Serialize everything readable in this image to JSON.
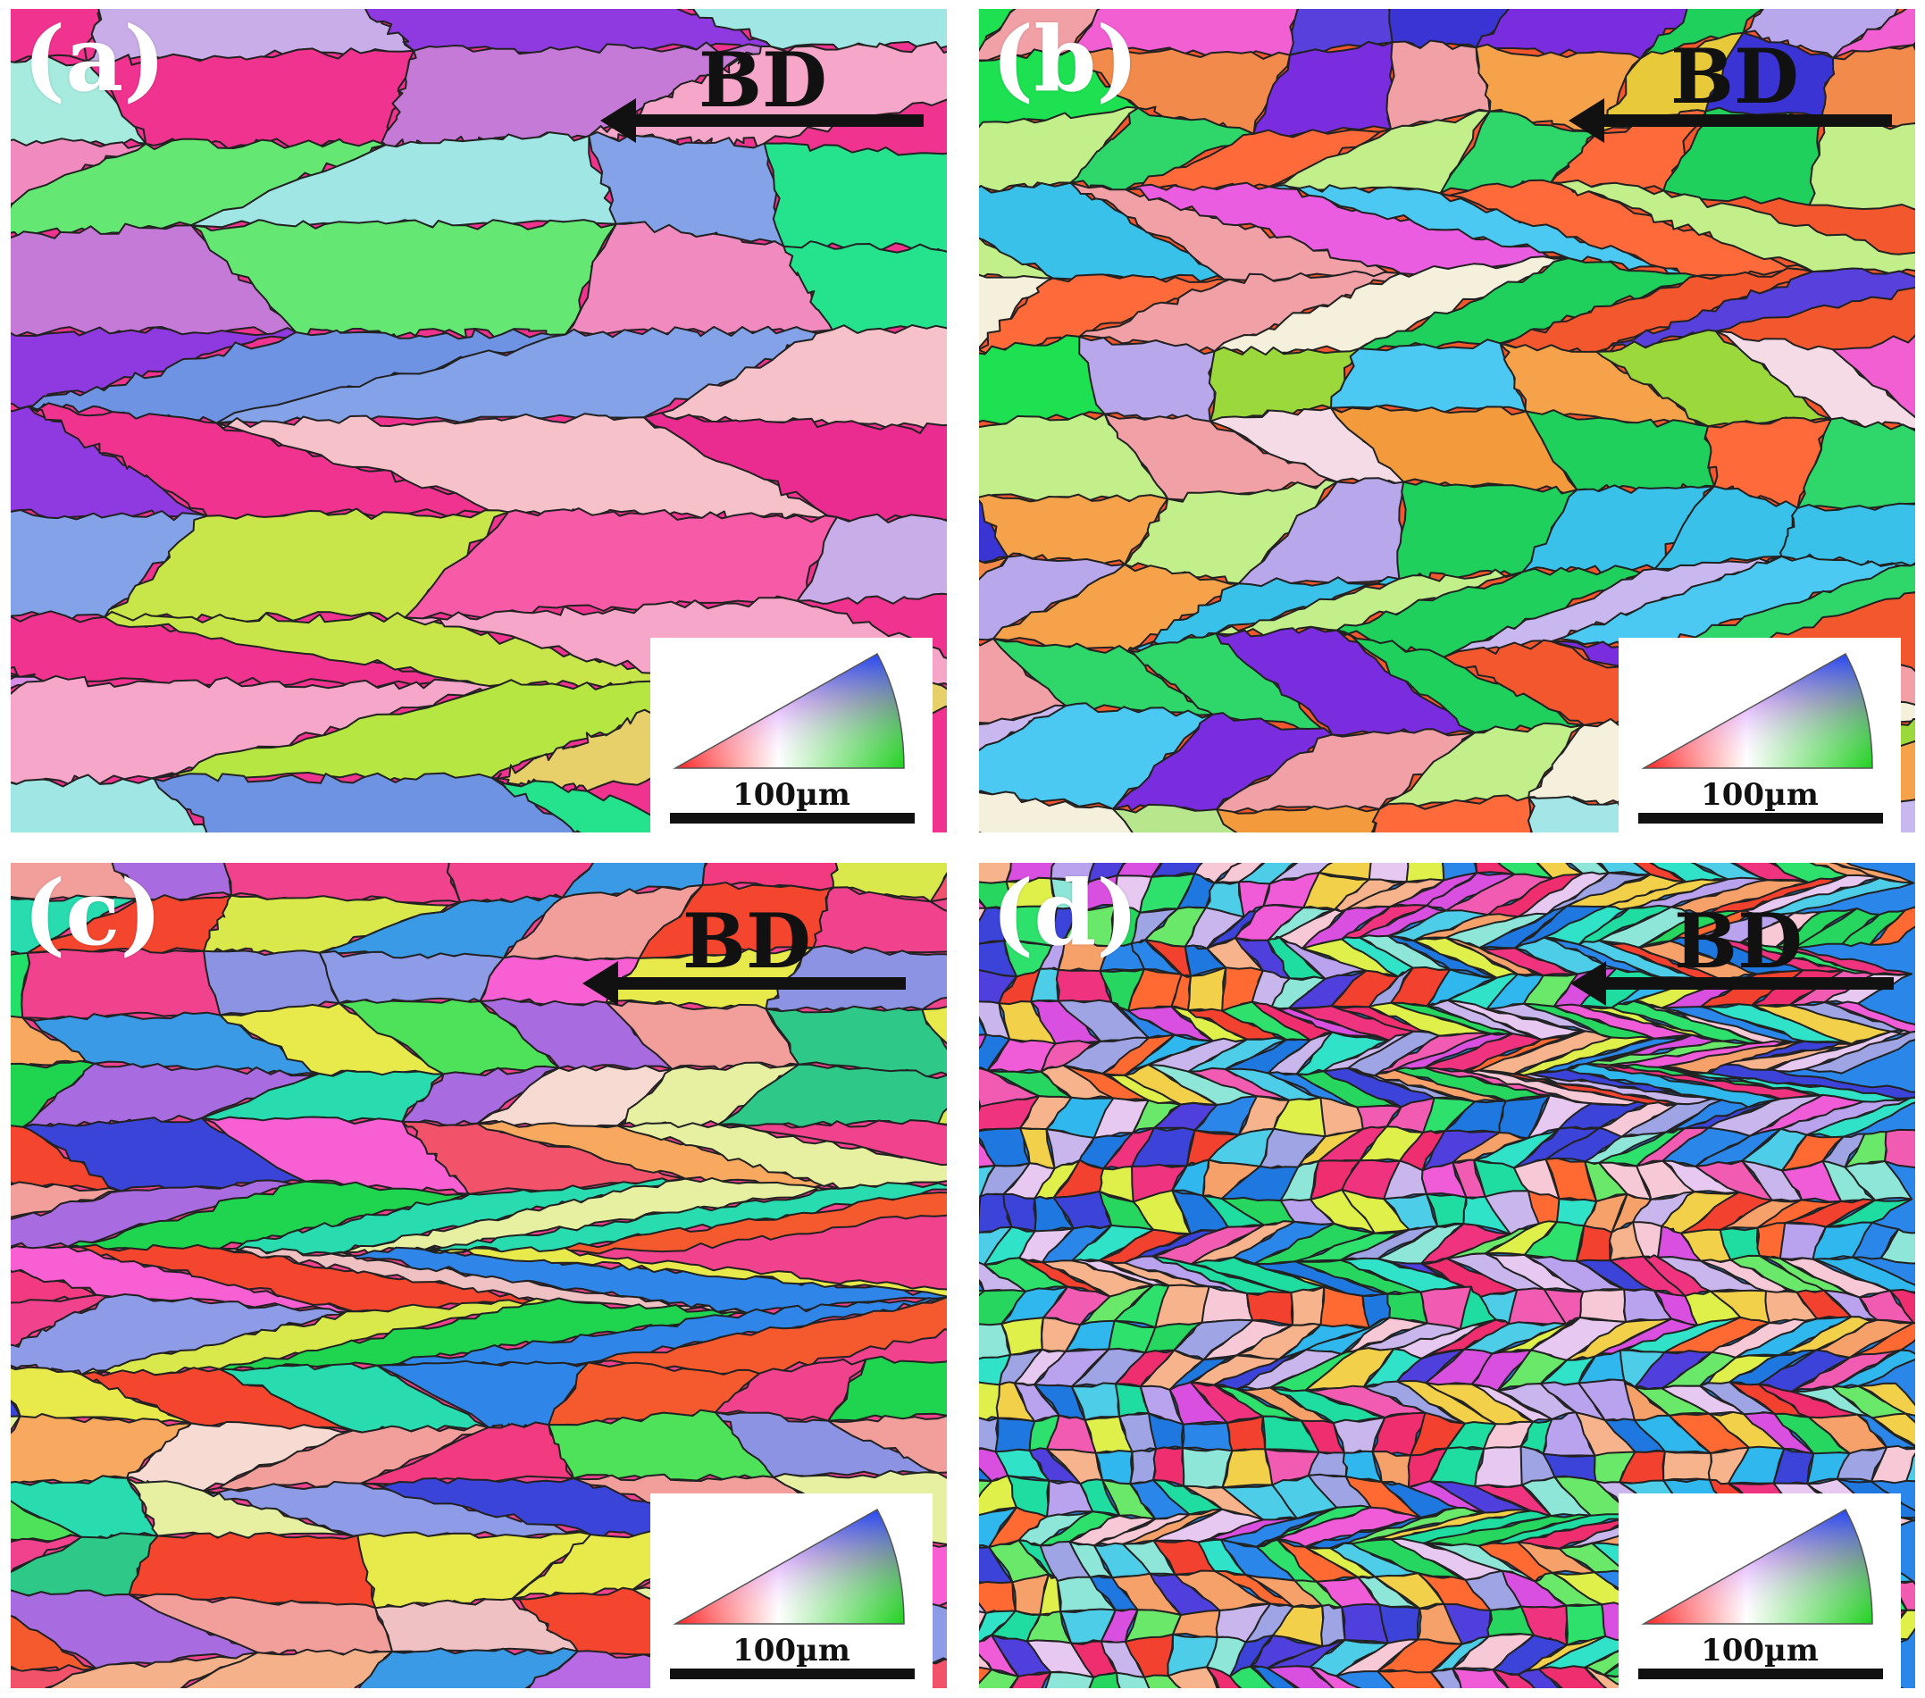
{
  "panels": [
    {
      "id": "a",
      "label": "(a)",
      "direction_label": "BD",
      "scale_label": "100µm",
      "palette": [
        "#f0338f",
        "#ea2b90",
        "#f75aa6",
        "#6f93e3",
        "#84a2e8",
        "#b6e641",
        "#c8e64a",
        "#25e28d",
        "#1fe58a",
        "#f08abf",
        "#f6a6c8",
        "#e7d06a",
        "#a7eade",
        "#9fe6e4",
        "#d88ce6",
        "#c67ad8",
        "#ce6ee0",
        "#c8ade8",
        "#8f3ae0",
        "#65e873",
        "#f7c1c9",
        "#f19bb8"
      ]
    },
    {
      "id": "b",
      "label": "(b)",
      "direction_label": "BD",
      "scale_label": "100µm",
      "palette": [
        "#f3572d",
        "#ff6a3a",
        "#f39a3c",
        "#f6a24b",
        "#f18a4a",
        "#7a2cdf",
        "#3b34d4",
        "#5740dc",
        "#2fd66a",
        "#1fd05d",
        "#1ee152",
        "#9bd83c",
        "#9fdc3c",
        "#b8e68c",
        "#c3ef8a",
        "#a4e6e8",
        "#39c1ea",
        "#4cc9f2",
        "#f15fd3",
        "#ea5ce0",
        "#c9b7ef",
        "#b9a7ec",
        "#e8c93a",
        "#f4f0dc",
        "#f1a1a6",
        "#f5dbe6"
      ]
    },
    {
      "id": "c",
      "label": "(c)",
      "direction_label": "BD",
      "scale_label": "100µm",
      "palette": [
        "#f0428d",
        "#f13a7f",
        "#f2526a",
        "#f4462e",
        "#f55a2f",
        "#ff6a2f",
        "#e7ea4a",
        "#d9e84a",
        "#f9a85f",
        "#f5b28a",
        "#f29f9c",
        "#b86ae5",
        "#a96be0",
        "#8e9be6",
        "#8c93e2",
        "#3b44d8",
        "#2f86e8",
        "#3a9ae6",
        "#2ec989",
        "#28dcb0",
        "#22e06a",
        "#4ee25a",
        "#1fd44f",
        "#f0c1c2",
        "#f7dbd2",
        "#f85fd2",
        "#e6f0a0"
      ]
    },
    {
      "id": "d",
      "label": "(d)",
      "direction_label": "BD",
      "scale_label": "100µm",
      "palette": [
        "#2a86e8",
        "#1f78e0",
        "#3b43d8",
        "#4f3fdc",
        "#2ee06c",
        "#26d65e",
        "#6ae86a",
        "#1fdca0",
        "#2fe2c8",
        "#4ecde8",
        "#30b8ee",
        "#f0337e",
        "#ee2e6f",
        "#f25bb2",
        "#f05cd8",
        "#d94fe0",
        "#f2412f",
        "#ff6a33",
        "#f6a06a",
        "#f7b38c",
        "#f3d04a",
        "#dff04a",
        "#c8b6ec",
        "#b9a3ee",
        "#9ea4e4",
        "#f7c9d6",
        "#e6c8f0",
        "#8de6d8"
      ]
    }
  ],
  "colors": {
    "boundary": "#222222",
    "text": "#111111",
    "label": "#ffffff"
  },
  "legend_icon": "inverse-pole-figure-icon"
}
